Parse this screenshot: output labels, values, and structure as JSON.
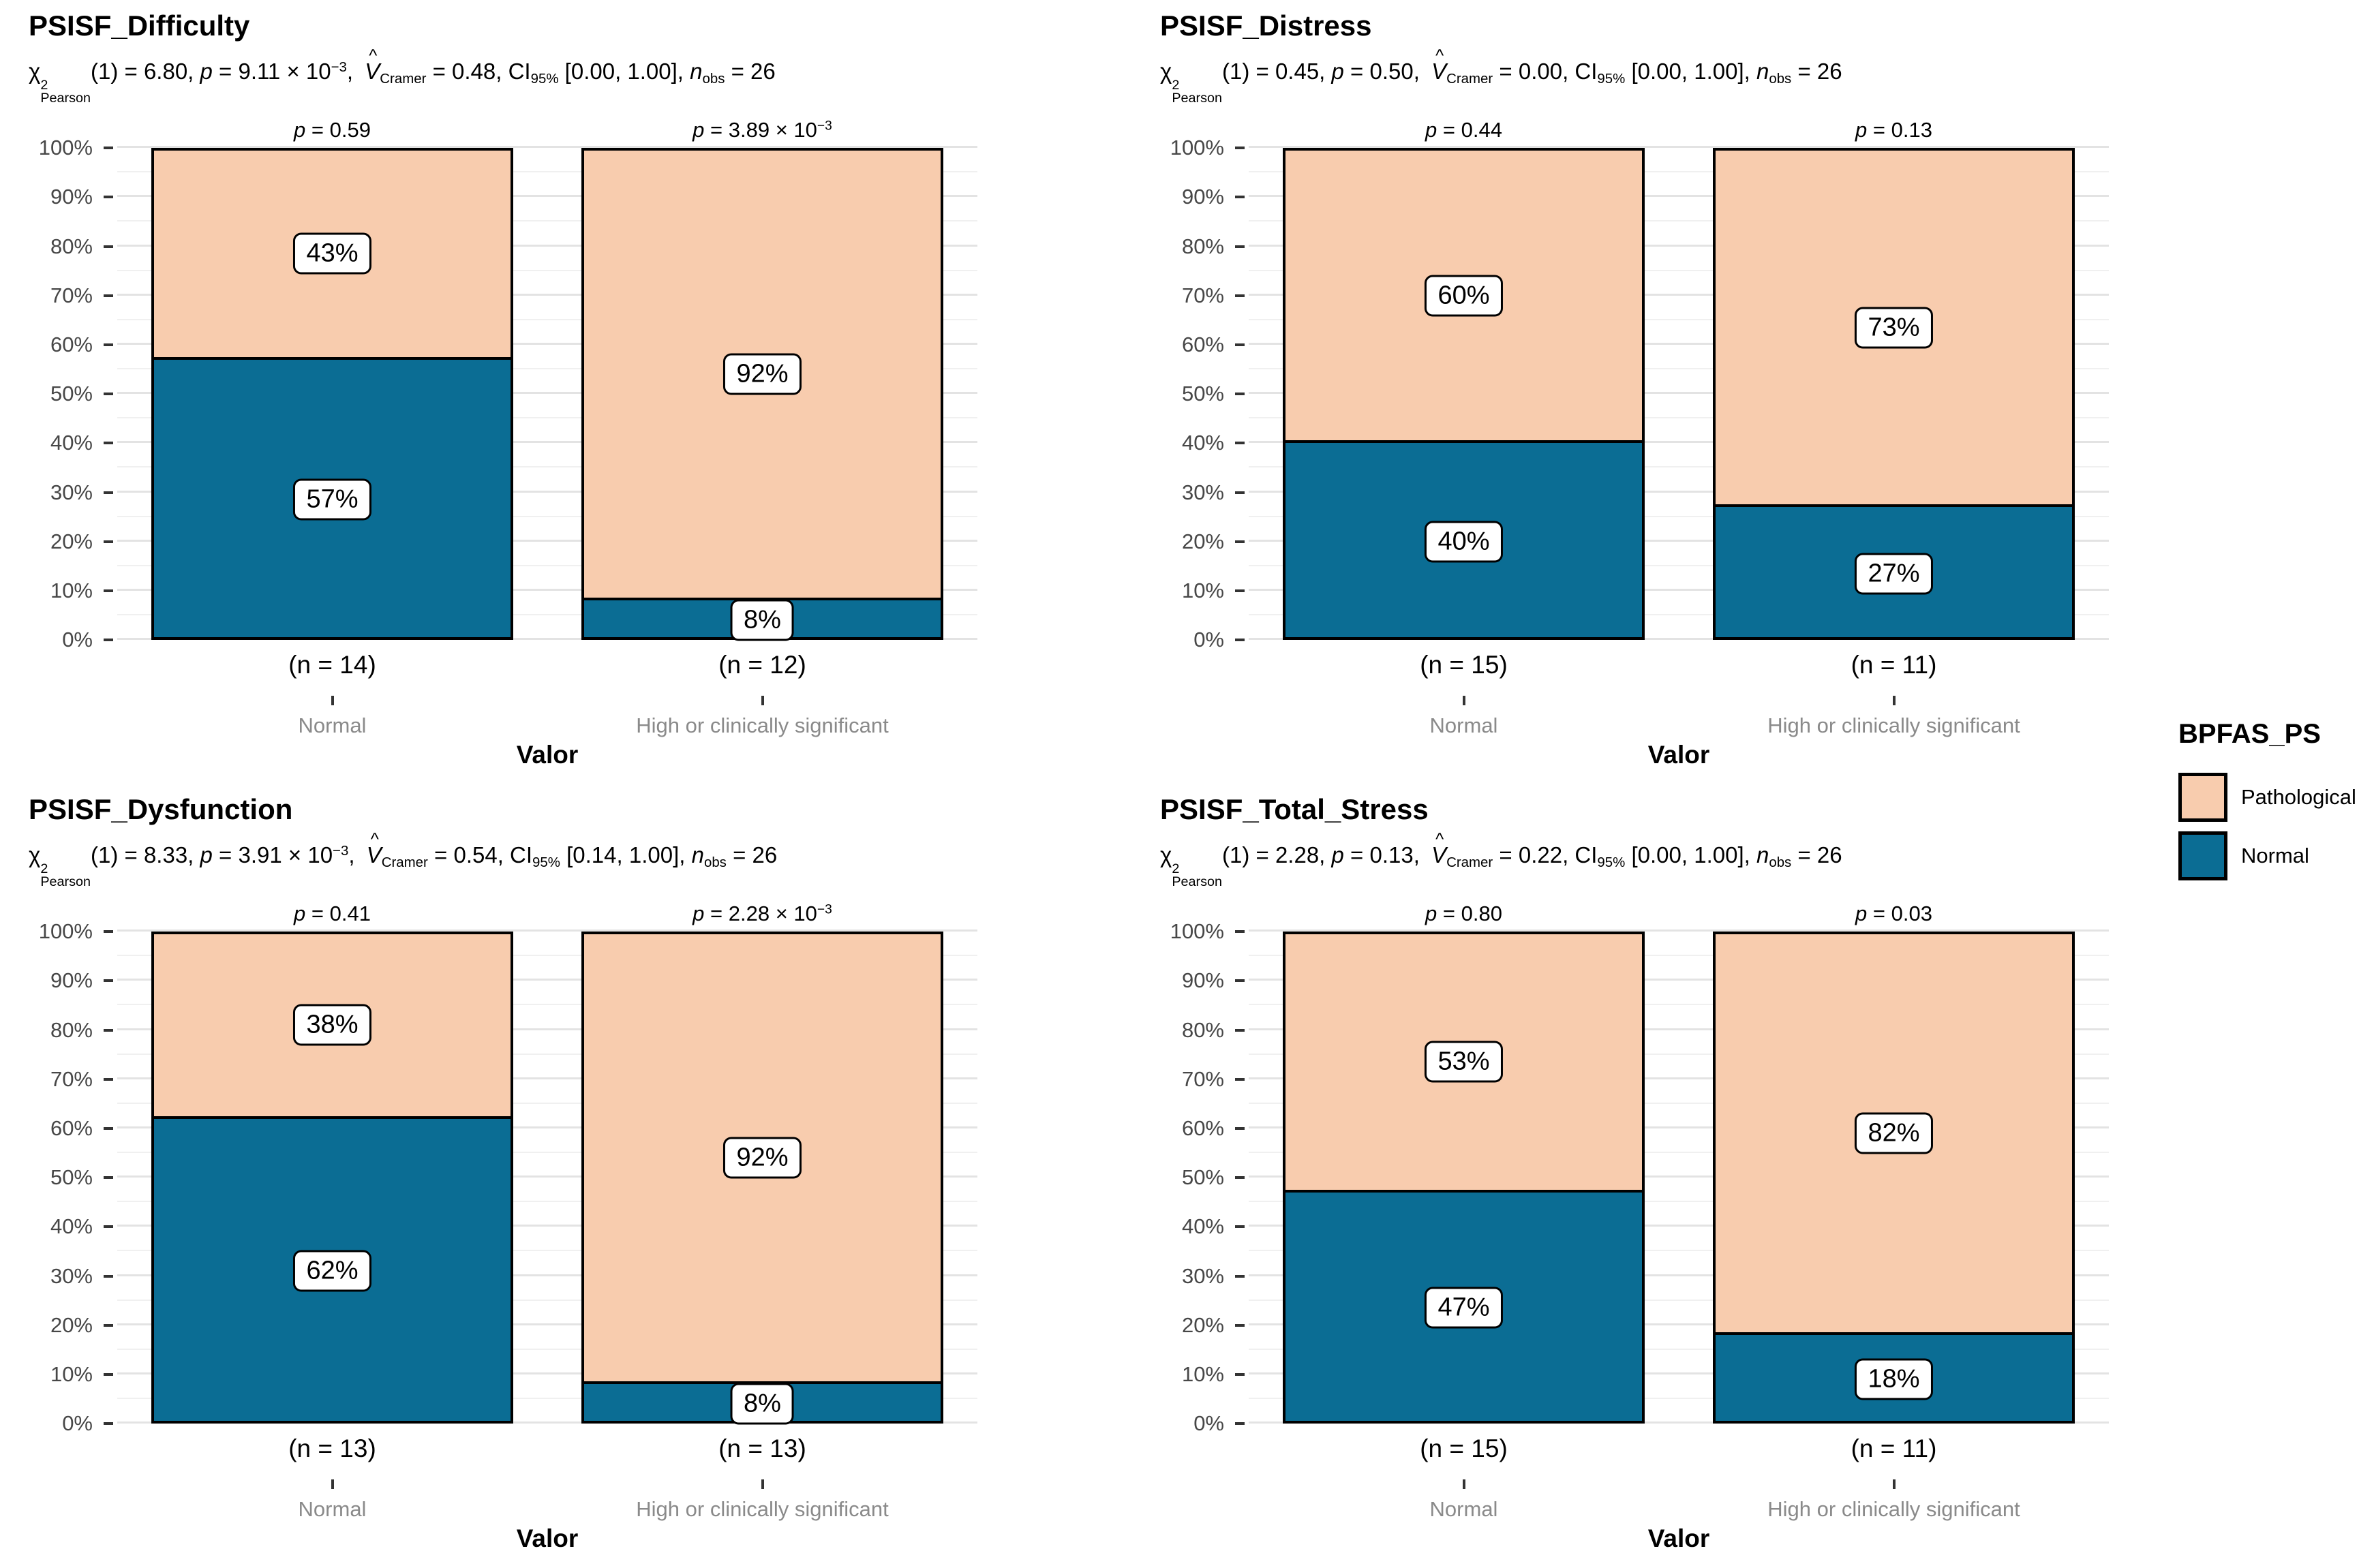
{
  "colors": {
    "pathological": "#F8CCAE",
    "normal": "#0B6D94",
    "bar_border": "#000000",
    "grid_major": "#E3E3E3",
    "grid_minor": "#F0F0F0",
    "axis_tick_label": "#474747",
    "category_label": "#8A8A8A",
    "tick_mark": "#333333",
    "label_box_bg": "#FFFFFF"
  },
  "y_axis": {
    "tick_labels": [
      "0%",
      "10%",
      "20%",
      "30%",
      "40%",
      "50%",
      "60%",
      "70%",
      "80%",
      "90%",
      "100%"
    ],
    "major_step_pct": 10,
    "minor_step_pct": 5
  },
  "x_axis_title": "Valor",
  "legend": {
    "title": "BPFAS_PS",
    "items": [
      {
        "label": "Pathological",
        "color_key": "pathological"
      },
      {
        "label": "Normal",
        "color_key": "normal"
      }
    ]
  },
  "chart_data": [
    {
      "type": "bar",
      "stacked": true,
      "percent": true,
      "title": "PSISF_Difficulty",
      "subtitle_segments": [
        {
          "s": "n",
          "t": "χ"
        },
        {
          "s": "stack",
          "top": "2",
          "bottom": "Pearson"
        },
        {
          "s": "n",
          "t": "(1) = 6.80, "
        },
        {
          "s": "i",
          "t": "p"
        },
        {
          "s": "n",
          "t": " = 9.11 × 10"
        },
        {
          "s": "sup",
          "t": "−3"
        },
        {
          "s": "n",
          "t": ", "
        },
        {
          "s": "hat",
          "t": "V",
          "mark": "^"
        },
        {
          "s": "sub",
          "t": "Cramer"
        },
        {
          "s": "n",
          "t": " = 0.48, CI"
        },
        {
          "s": "sub",
          "t": "95%"
        },
        {
          "s": "n",
          "t": " [0.00, 1.00], "
        },
        {
          "s": "i",
          "t": "n"
        },
        {
          "s": "sub",
          "t": "obs"
        },
        {
          "s": "n",
          "t": " = 26"
        }
      ],
      "categories": [
        "Normal",
        "High or clinically significant"
      ],
      "n_labels": [
        "(n = 14)",
        "(n = 12)"
      ],
      "bar_captions": [
        [
          {
            "s": "i",
            "t": "p"
          },
          {
            "s": "n",
            "t": " = 0.59"
          }
        ],
        [
          {
            "s": "i",
            "t": "p"
          },
          {
            "s": "n",
            "t": " = 3.89 × 10"
          },
          {
            "s": "sup",
            "t": "−3"
          }
        ]
      ],
      "series": [
        {
          "name": "Pathological",
          "color_key": "pathological",
          "values": [
            43,
            92
          ]
        },
        {
          "name": "Normal",
          "color_key": "normal",
          "values": [
            57,
            8
          ]
        }
      ],
      "xlabel": "Valor",
      "ylim": [
        0,
        100
      ]
    },
    {
      "type": "bar",
      "stacked": true,
      "percent": true,
      "title": "PSISF_Distress",
      "subtitle_segments": [
        {
          "s": "n",
          "t": "χ"
        },
        {
          "s": "stack",
          "top": "2",
          "bottom": "Pearson"
        },
        {
          "s": "n",
          "t": "(1) = 0.45, "
        },
        {
          "s": "i",
          "t": "p"
        },
        {
          "s": "n",
          "t": " = 0.50, "
        },
        {
          "s": "hat",
          "t": "V",
          "mark": "^"
        },
        {
          "s": "sub",
          "t": "Cramer"
        },
        {
          "s": "n",
          "t": " = 0.00, CI"
        },
        {
          "s": "sub",
          "t": "95%"
        },
        {
          "s": "n",
          "t": " [0.00, 1.00], "
        },
        {
          "s": "i",
          "t": "n"
        },
        {
          "s": "sub",
          "t": "obs"
        },
        {
          "s": "n",
          "t": " = 26"
        }
      ],
      "categories": [
        "Normal",
        "High or clinically significant"
      ],
      "n_labels": [
        "(n = 15)",
        "(n = 11)"
      ],
      "bar_captions": [
        [
          {
            "s": "i",
            "t": "p"
          },
          {
            "s": "n",
            "t": " = 0.44"
          }
        ],
        [
          {
            "s": "i",
            "t": "p"
          },
          {
            "s": "n",
            "t": " = 0.13"
          }
        ]
      ],
      "series": [
        {
          "name": "Pathological",
          "color_key": "pathological",
          "values": [
            60,
            73
          ]
        },
        {
          "name": "Normal",
          "color_key": "normal",
          "values": [
            40,
            27
          ]
        }
      ],
      "xlabel": "Valor",
      "ylim": [
        0,
        100
      ]
    },
    {
      "type": "bar",
      "stacked": true,
      "percent": true,
      "title": "PSISF_Dysfunction",
      "subtitle_segments": [
        {
          "s": "n",
          "t": "χ"
        },
        {
          "s": "stack",
          "top": "2",
          "bottom": "Pearson"
        },
        {
          "s": "n",
          "t": "(1) = 8.33, "
        },
        {
          "s": "i",
          "t": "p"
        },
        {
          "s": "n",
          "t": " = 3.91 × 10"
        },
        {
          "s": "sup",
          "t": "−3"
        },
        {
          "s": "n",
          "t": ", "
        },
        {
          "s": "hat",
          "t": "V",
          "mark": "^"
        },
        {
          "s": "sub",
          "t": "Cramer"
        },
        {
          "s": "n",
          "t": " = 0.54, CI"
        },
        {
          "s": "sub",
          "t": "95%"
        },
        {
          "s": "n",
          "t": " [0.14, 1.00], "
        },
        {
          "s": "i",
          "t": "n"
        },
        {
          "s": "sub",
          "t": "obs"
        },
        {
          "s": "n",
          "t": " = 26"
        }
      ],
      "categories": [
        "Normal",
        "High or clinically significant"
      ],
      "n_labels": [
        "(n = 13)",
        "(n = 13)"
      ],
      "bar_captions": [
        [
          {
            "s": "i",
            "t": "p"
          },
          {
            "s": "n",
            "t": " = 0.41"
          }
        ],
        [
          {
            "s": "i",
            "t": "p"
          },
          {
            "s": "n",
            "t": " = 2.28 × 10"
          },
          {
            "s": "sup",
            "t": "−3"
          }
        ]
      ],
      "series": [
        {
          "name": "Pathological",
          "color_key": "pathological",
          "values": [
            38,
            92
          ]
        },
        {
          "name": "Normal",
          "color_key": "normal",
          "values": [
            62,
            8
          ]
        }
      ],
      "xlabel": "Valor",
      "ylim": [
        0,
        100
      ]
    },
    {
      "type": "bar",
      "stacked": true,
      "percent": true,
      "title": "PSISF_Total_Stress",
      "subtitle_segments": [
        {
          "s": "n",
          "t": "χ"
        },
        {
          "s": "stack",
          "top": "2",
          "bottom": "Pearson"
        },
        {
          "s": "n",
          "t": "(1) = 2.28, "
        },
        {
          "s": "i",
          "t": "p"
        },
        {
          "s": "n",
          "t": " = 0.13, "
        },
        {
          "s": "hat",
          "t": "V",
          "mark": "^"
        },
        {
          "s": "sub",
          "t": "Cramer"
        },
        {
          "s": "n",
          "t": " = 0.22, CI"
        },
        {
          "s": "sub",
          "t": "95%"
        },
        {
          "s": "n",
          "t": " [0.00, 1.00], "
        },
        {
          "s": "i",
          "t": "n"
        },
        {
          "s": "sub",
          "t": "obs"
        },
        {
          "s": "n",
          "t": " = 26"
        }
      ],
      "categories": [
        "Normal",
        "High or clinically significant"
      ],
      "n_labels": [
        "(n = 15)",
        "(n = 11)"
      ],
      "bar_captions": [
        [
          {
            "s": "i",
            "t": "p"
          },
          {
            "s": "n",
            "t": " = 0.80"
          }
        ],
        [
          {
            "s": "i",
            "t": "p"
          },
          {
            "s": "n",
            "t": " = 0.03"
          }
        ]
      ],
      "series": [
        {
          "name": "Pathological",
          "color_key": "pathological",
          "values": [
            53,
            82
          ]
        },
        {
          "name": "Normal",
          "color_key": "normal",
          "values": [
            47,
            18
          ]
        }
      ],
      "xlabel": "Valor",
      "ylim": [
        0,
        100
      ]
    }
  ]
}
